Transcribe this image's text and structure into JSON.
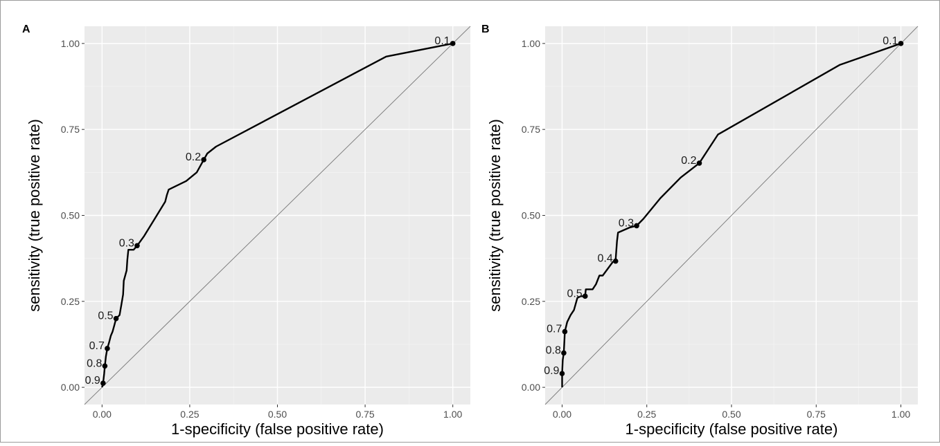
{
  "chart_data": [
    {
      "panel_label": "A",
      "type": "line",
      "xlabel": "1-specificity (false positive rate)",
      "ylabel": "sensitivity (true positive rate)",
      "xlim": [
        -0.05,
        1.05
      ],
      "ylim": [
        -0.05,
        1.05
      ],
      "xticks": [
        0.0,
        0.25,
        0.5,
        0.75,
        1.0
      ],
      "xtick_labels": [
        "0.00",
        "0.25",
        "0.50",
        "0.75",
        "1.00"
      ],
      "yticks": [
        0.0,
        0.25,
        0.5,
        0.75,
        1.0
      ],
      "ytick_labels": [
        "0.00",
        "0.25",
        "0.50",
        "0.75",
        "1.00"
      ],
      "grid": true,
      "reference_line": [
        [
          -0.05,
          -0.05
        ],
        [
          1.05,
          1.05
        ]
      ],
      "curve": [
        [
          0.0,
          0.0
        ],
        [
          0.003,
          0.012
        ],
        [
          0.006,
          0.04
        ],
        [
          0.008,
          0.062
        ],
        [
          0.011,
          0.09
        ],
        [
          0.015,
          0.113
        ],
        [
          0.02,
          0.13
        ],
        [
          0.025,
          0.15
        ],
        [
          0.03,
          0.162
        ],
        [
          0.035,
          0.18
        ],
        [
          0.04,
          0.2
        ],
        [
          0.05,
          0.21
        ],
        [
          0.055,
          0.24
        ],
        [
          0.06,
          0.27
        ],
        [
          0.062,
          0.31
        ],
        [
          0.07,
          0.34
        ],
        [
          0.072,
          0.37
        ],
        [
          0.075,
          0.4
        ],
        [
          0.09,
          0.4
        ],
        [
          0.1,
          0.412
        ],
        [
          0.12,
          0.44
        ],
        [
          0.15,
          0.49
        ],
        [
          0.18,
          0.54
        ],
        [
          0.185,
          0.56
        ],
        [
          0.19,
          0.575
        ],
        [
          0.21,
          0.585
        ],
        [
          0.24,
          0.6
        ],
        [
          0.27,
          0.625
        ],
        [
          0.29,
          0.662
        ],
        [
          0.3,
          0.68
        ],
        [
          0.325,
          0.7
        ],
        [
          0.81,
          0.962
        ],
        [
          1.0,
          1.0
        ]
      ],
      "threshold_points": [
        {
          "label": "0.1",
          "x": 1.0,
          "y": 1.0
        },
        {
          "label": "0.2",
          "x": 0.29,
          "y": 0.662
        },
        {
          "label": "0.3",
          "x": 0.1,
          "y": 0.412
        },
        {
          "label": "0.5",
          "x": 0.04,
          "y": 0.2
        },
        {
          "label": "0.7",
          "x": 0.015,
          "y": 0.113
        },
        {
          "label": "0.8",
          "x": 0.008,
          "y": 0.062
        },
        {
          "label": "0.9",
          "x": 0.003,
          "y": 0.012
        }
      ]
    },
    {
      "panel_label": "B",
      "type": "line",
      "xlabel": "1-specificity (false positive rate)",
      "ylabel": "sensitivity (true positive rate)",
      "xlim": [
        -0.05,
        1.05
      ],
      "ylim": [
        -0.05,
        1.05
      ],
      "xticks": [
        0.0,
        0.25,
        0.5,
        0.75,
        1.0
      ],
      "xtick_labels": [
        "0.00",
        "0.25",
        "0.50",
        "0.75",
        "1.00"
      ],
      "yticks": [
        0.0,
        0.25,
        0.5,
        0.75,
        1.0
      ],
      "ytick_labels": [
        "0.00",
        "0.25",
        "0.50",
        "0.75",
        "1.00"
      ],
      "grid": true,
      "reference_line": [
        [
          -0.05,
          -0.05
        ],
        [
          1.05,
          1.05
        ]
      ],
      "curve": [
        [
          0.0,
          0.0
        ],
        [
          0.0,
          0.04
        ],
        [
          0.002,
          0.08
        ],
        [
          0.005,
          0.1
        ],
        [
          0.007,
          0.14
        ],
        [
          0.008,
          0.162
        ],
        [
          0.015,
          0.19
        ],
        [
          0.025,
          0.21
        ],
        [
          0.035,
          0.225
        ],
        [
          0.045,
          0.26
        ],
        [
          0.055,
          0.265
        ],
        [
          0.068,
          0.265
        ],
        [
          0.07,
          0.285
        ],
        [
          0.09,
          0.285
        ],
        [
          0.1,
          0.3
        ],
        [
          0.11,
          0.325
        ],
        [
          0.12,
          0.325
        ],
        [
          0.15,
          0.365
        ],
        [
          0.158,
          0.37
        ],
        [
          0.162,
          0.425
        ],
        [
          0.165,
          0.45
        ],
        [
          0.2,
          0.465
        ],
        [
          0.22,
          0.47
        ],
        [
          0.24,
          0.49
        ],
        [
          0.29,
          0.55
        ],
        [
          0.35,
          0.61
        ],
        [
          0.405,
          0.652
        ],
        [
          0.43,
          0.69
        ],
        [
          0.46,
          0.735
        ],
        [
          0.82,
          0.938
        ],
        [
          1.0,
          1.0
        ]
      ],
      "threshold_points": [
        {
          "label": "0.1",
          "x": 1.0,
          "y": 1.0
        },
        {
          "label": "0.2",
          "x": 0.405,
          "y": 0.652
        },
        {
          "label": "0.3",
          "x": 0.22,
          "y": 0.47
        },
        {
          "label": "0.4",
          "x": 0.158,
          "y": 0.367
        },
        {
          "label": "0.5",
          "x": 0.068,
          "y": 0.265
        },
        {
          "label": "0.7",
          "x": 0.008,
          "y": 0.162
        },
        {
          "label": "0.8",
          "x": 0.005,
          "y": 0.1
        },
        {
          "label": "0.9",
          "x": 0.0,
          "y": 0.04
        }
      ]
    }
  ]
}
